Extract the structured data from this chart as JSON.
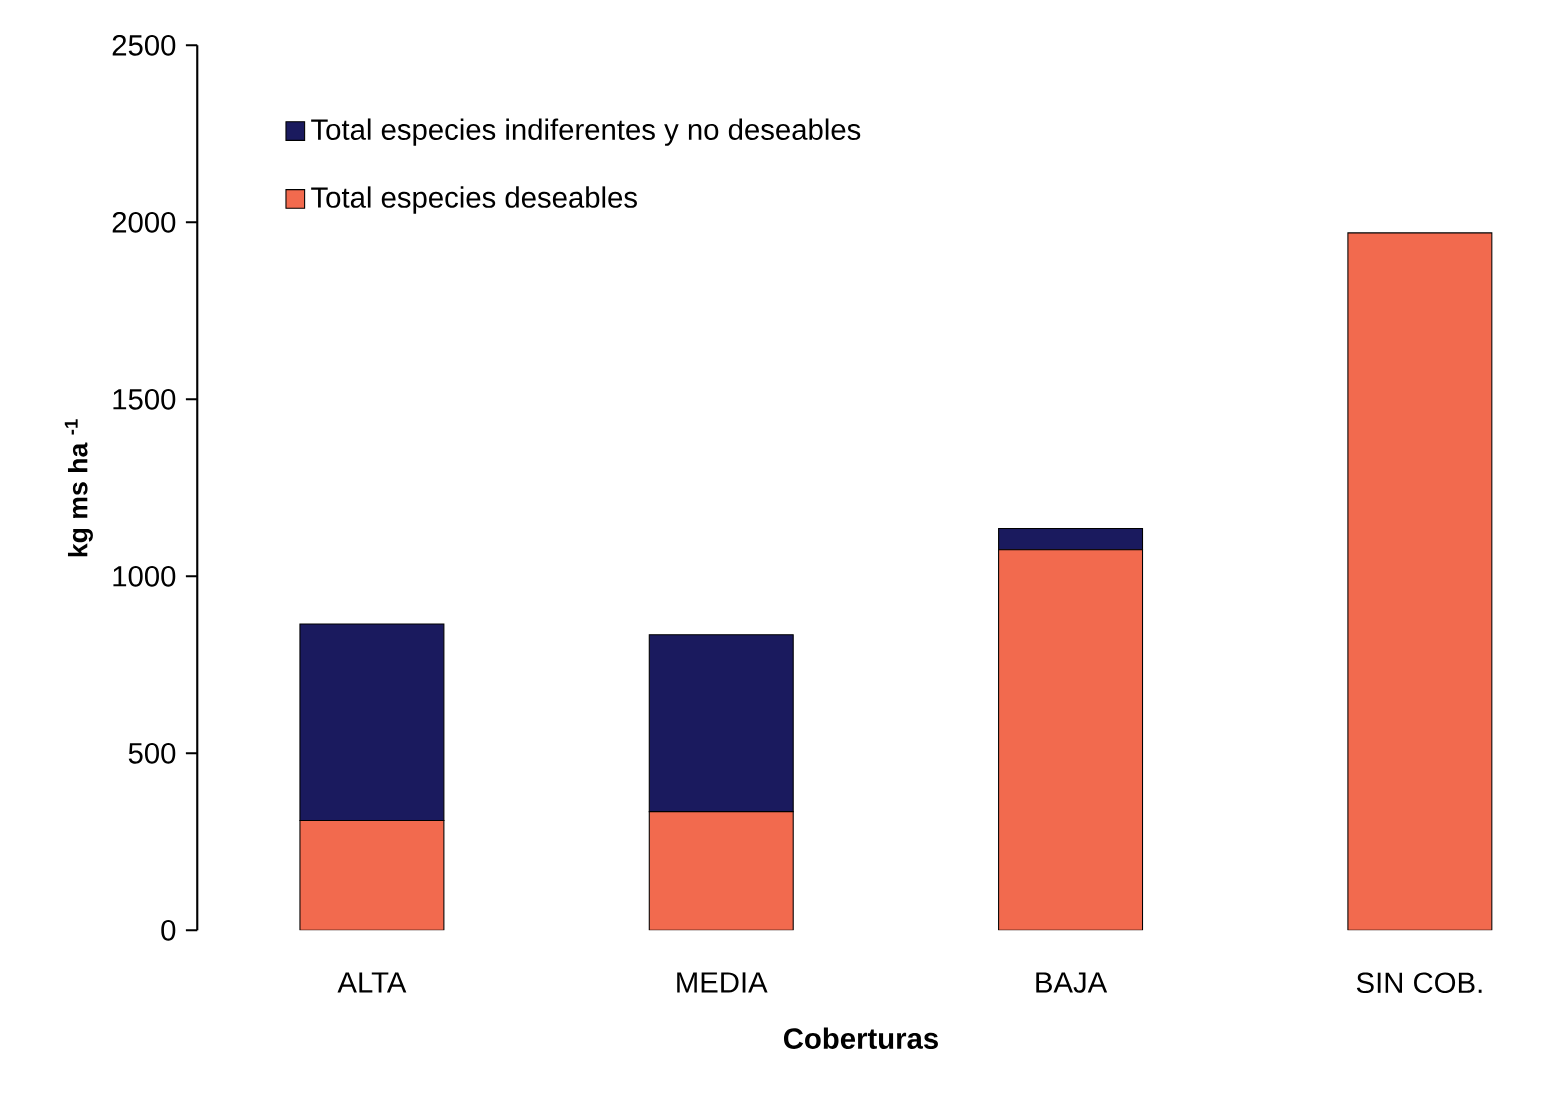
{
  "chart_data": {
    "type": "bar",
    "stacked": true,
    "xlabel": "Coberturas",
    "ylabel": "kg ms ha $^{-1}$",
    "categories": [
      "ALTA",
      "MEDIA",
      "BAJA",
      "SIN COB."
    ],
    "series": [
      {
        "name": "Total especies deseables",
        "color": "#f26a4e",
        "values": [
          310,
          335,
          1075,
          1970
        ]
      },
      {
        "name": "Total especies indiferentes y no deseables",
        "color": "#1a1a5e",
        "values": [
          555,
          500,
          60,
          0
        ]
      }
    ],
    "ylim": [
      0,
      2500
    ],
    "yticks": [
      0,
      500,
      1000,
      1500,
      2000,
      2500
    ],
    "legend": "top left"
  }
}
